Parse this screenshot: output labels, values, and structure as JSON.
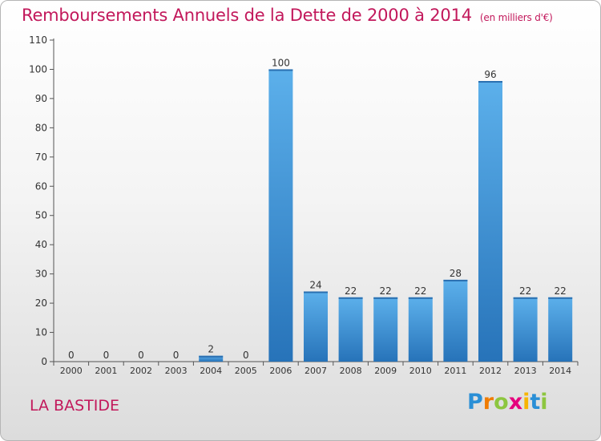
{
  "title": "Remboursements Annuels de la Dette de 2000 à 2014",
  "unit_label": "(en milliers d'€)",
  "commune": "LA BASTIDE",
  "logo": {
    "letters": [
      "P",
      "r",
      "o",
      "x",
      "i",
      "t",
      "i"
    ],
    "colors": [
      "#2a8fd6",
      "#f07c00",
      "#8dc63f",
      "#e5007d",
      "#f7b500",
      "#2a8fd6",
      "#8dc63f"
    ]
  },
  "colors": {
    "title": "#c2185b",
    "bar": "#3a8fd3",
    "bar_dark": "#2070b8",
    "bar_light": "#62b4ec"
  },
  "chart_data": {
    "type": "bar",
    "categories": [
      "2000",
      "2001",
      "2002",
      "2003",
      "2004",
      "2005",
      "2006",
      "2007",
      "2008",
      "2009",
      "2010",
      "2011",
      "2012",
      "2013",
      "2014"
    ],
    "values": [
      0,
      0,
      0,
      0,
      2,
      0,
      100,
      24,
      22,
      22,
      22,
      28,
      96,
      22,
      22
    ],
    "title": "Remboursements Annuels de la Dette de 2000 à 2014",
    "ylim": [
      0,
      110
    ],
    "yticks": [
      0,
      10,
      20,
      30,
      40,
      50,
      60,
      70,
      80,
      90,
      100,
      110
    ],
    "grid": false,
    "data_labels": true
  }
}
